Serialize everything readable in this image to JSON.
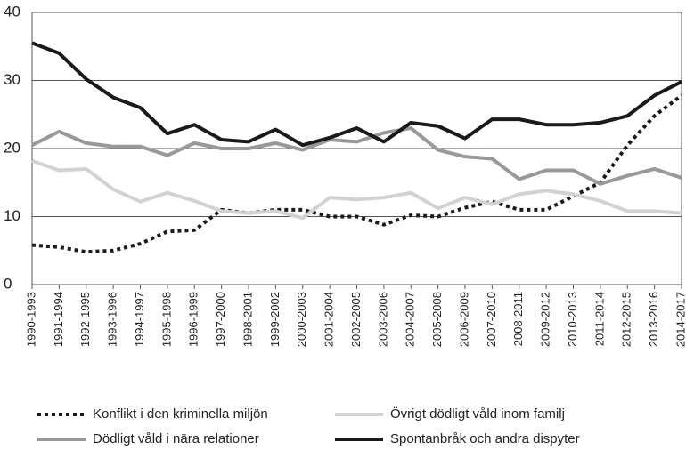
{
  "chart_data": {
    "type": "line",
    "categories": [
      "1990-1993",
      "1991-1994",
      "1992-1995",
      "1993-1996",
      "1994-1997",
      "1995-1998",
      "1996-1999",
      "1997-2000",
      "1998-2001",
      "1999-2002",
      "2000-2003",
      "2001-2004",
      "2002-2005",
      "2003-2006",
      "2004-2007",
      "2005-2008",
      "2006-2009",
      "2007-2010",
      "2008-2011",
      "2009-2012",
      "2010-2013",
      "2011-2014",
      "2012-2015",
      "2013-2016",
      "2014-2017"
    ],
    "series": [
      {
        "name": "Konflikt i den kriminella miljön",
        "color": "#1a1a1a",
        "dash": "dotted",
        "values": [
          5.8,
          5.5,
          4.8,
          5,
          6,
          7.8,
          8,
          11,
          10.5,
          11,
          11,
          10,
          10,
          8.8,
          10.2,
          10,
          11.3,
          12.2,
          11,
          11,
          13,
          15,
          20.5,
          24.8,
          27.8
        ]
      },
      {
        "name": "Övrigt dödligt våld inom familj",
        "color": "#d2d2d2",
        "values": [
          18.2,
          16.8,
          17,
          14,
          12.2,
          13.5,
          12.3,
          10.8,
          10.5,
          10.8,
          9.8,
          12.8,
          12.5,
          12.8,
          13.5,
          11.2,
          12.8,
          11.8,
          13.3,
          13.8,
          13.3,
          12.3,
          10.8,
          10.8,
          10.5
        ]
      },
      {
        "name": "Dödligt våld i nära relationer",
        "color": "#999999",
        "values": [
          20.5,
          22.5,
          20.8,
          20.3,
          20.3,
          19,
          20.8,
          20,
          20,
          20.8,
          19.8,
          21.3,
          21,
          22.3,
          23,
          19.8,
          18.8,
          18.5,
          15.5,
          16.8,
          16.8,
          14.8,
          16,
          17,
          15.7
        ]
      },
      {
        "name": "Spontanbråk och andra dispyter",
        "color": "#1a1a1a",
        "values": [
          35.5,
          34,
          30.2,
          27.5,
          26,
          22.2,
          23.5,
          21.3,
          21,
          22.8,
          20.5,
          21.6,
          23,
          21,
          23.8,
          23.3,
          21.5,
          24.3,
          24.3,
          23.5,
          23.5,
          23.8,
          24.8,
          27.8,
          29.8
        ]
      }
    ],
    "ylim": [
      0,
      40
    ],
    "yticks": [
      0,
      10,
      20,
      30,
      40
    ],
    "grid": true,
    "legend": "bottom"
  }
}
